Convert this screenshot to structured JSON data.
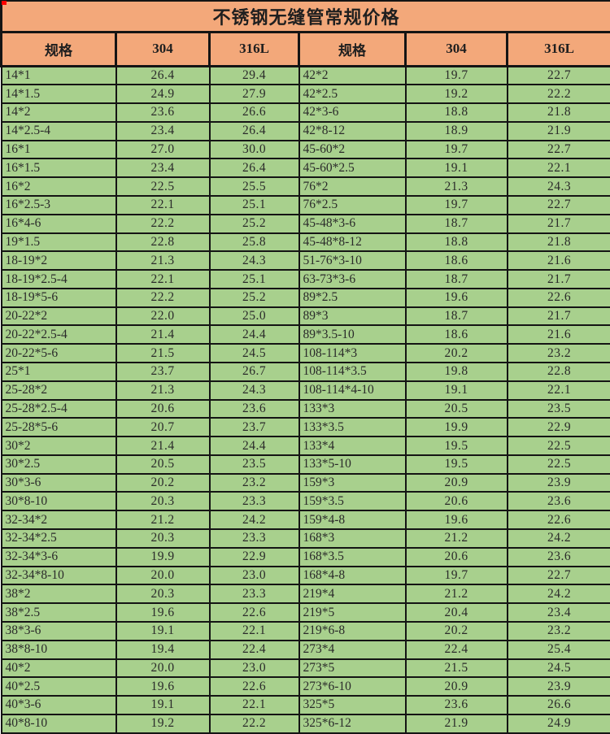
{
  "title": "不锈钢无缝管常规价格",
  "colors": {
    "title_bg": "#F3A87A",
    "header_bg": "#F3A87A",
    "row_bg": "#A8D08D",
    "border": "#141414",
    "corner_marker": "#FF0000"
  },
  "chart_data": {
    "type": "table",
    "title": "不锈钢无缝管常规价格",
    "columns": [
      "规格",
      "304",
      "316L",
      "规格",
      "304",
      "316L"
    ],
    "rows": [
      [
        "14*1",
        "26.4",
        "29.4",
        "42*2",
        "19.7",
        "22.7"
      ],
      [
        "14*1.5",
        "24.9",
        "27.9",
        "42*2.5",
        "19.2",
        "22.2"
      ],
      [
        "14*2",
        "23.6",
        "26.6",
        "42*3-6",
        "18.8",
        "21.8"
      ],
      [
        "14*2.5-4",
        "23.4",
        "26.4",
        "42*8-12",
        "18.9",
        "21.9"
      ],
      [
        "16*1",
        "27.0",
        "30.0",
        "45-60*2",
        "19.7",
        "22.7"
      ],
      [
        "16*1.5",
        "23.4",
        "26.4",
        "45-60*2.5",
        "19.1",
        "22.1"
      ],
      [
        "16*2",
        "22.5",
        "25.5",
        "76*2",
        "21.3",
        "24.3"
      ],
      [
        "16*2.5-3",
        "22.1",
        "25.1",
        "76*2.5",
        "19.7",
        "22.7"
      ],
      [
        "16*4-6",
        "22.2",
        "25.2",
        "45-48*3-6",
        "18.7",
        "21.7"
      ],
      [
        "19*1.5",
        "22.8",
        "25.8",
        "45-48*8-12",
        "18.8",
        "21.8"
      ],
      [
        "18-19*2",
        "21.3",
        "24.3",
        "51-76*3-10",
        "18.6",
        "21.6"
      ],
      [
        "18-19*2.5-4",
        "22.1",
        "25.1",
        "63-73*3-6",
        "18.7",
        "21.7"
      ],
      [
        "18-19*5-6",
        "22.2",
        "25.2",
        "89*2.5",
        "19.6",
        "22.6"
      ],
      [
        "20-22*2",
        "22.0",
        "25.0",
        "89*3",
        "18.7",
        "21.7"
      ],
      [
        "20-22*2.5-4",
        "21.4",
        "24.4",
        "89*3.5-10",
        "18.6",
        "21.6"
      ],
      [
        "20-22*5-6",
        "21.5",
        "24.5",
        "108-114*3",
        "20.2",
        "23.2"
      ],
      [
        "25*1",
        "23.7",
        "26.7",
        "108-114*3.5",
        "19.8",
        "22.8"
      ],
      [
        "25-28*2",
        "21.3",
        "24.3",
        "108-114*4-10",
        "19.1",
        "22.1"
      ],
      [
        "25-28*2.5-4",
        "20.6",
        "23.6",
        "133*3",
        "20.5",
        "23.5"
      ],
      [
        "25-28*5-6",
        "20.7",
        "23.7",
        "133*3.5",
        "19.9",
        "22.9"
      ],
      [
        "30*2",
        "21.4",
        "24.4",
        "133*4",
        "19.5",
        "22.5"
      ],
      [
        "30*2.5",
        "20.5",
        "23.5",
        "133*5-10",
        "19.5",
        "22.5"
      ],
      [
        "30*3-6",
        "20.2",
        "23.2",
        "159*3",
        "20.9",
        "23.9"
      ],
      [
        "30*8-10",
        "20.3",
        "23.3",
        "159*3.5",
        "20.6",
        "23.6"
      ],
      [
        "32-34*2",
        "21.2",
        "24.2",
        "159*4-8",
        "19.6",
        "22.6"
      ],
      [
        "32-34*2.5",
        "20.3",
        "23.3",
        "168*3",
        "21.2",
        "24.2"
      ],
      [
        "32-34*3-6",
        "19.9",
        "22.9",
        "168*3.5",
        "20.6",
        "23.6"
      ],
      [
        "32-34*8-10",
        "20.0",
        "23.0",
        "168*4-8",
        "19.7",
        "22.7"
      ],
      [
        "38*2",
        "20.3",
        "23.3",
        "219*4",
        "21.2",
        "24.2"
      ],
      [
        "38*2.5",
        "19.6",
        "22.6",
        "219*5",
        "20.4",
        "23.4"
      ],
      [
        "38*3-6",
        "19.1",
        "22.1",
        "219*6-8",
        "20.2",
        "23.2"
      ],
      [
        "38*8-10",
        "19.4",
        "22.4",
        "273*4",
        "22.4",
        "25.4"
      ],
      [
        "40*2",
        "20.0",
        "23.0",
        "273*5",
        "21.5",
        "24.5"
      ],
      [
        "40*2.5",
        "19.6",
        "22.6",
        "273*6-10",
        "20.9",
        "23.9"
      ],
      [
        "40*3-6",
        "19.1",
        "22.1",
        "325*5",
        "23.6",
        "26.6"
      ],
      [
        "40*8-10",
        "19.2",
        "22.2",
        "325*6-12",
        "21.9",
        "24.9"
      ]
    ]
  }
}
